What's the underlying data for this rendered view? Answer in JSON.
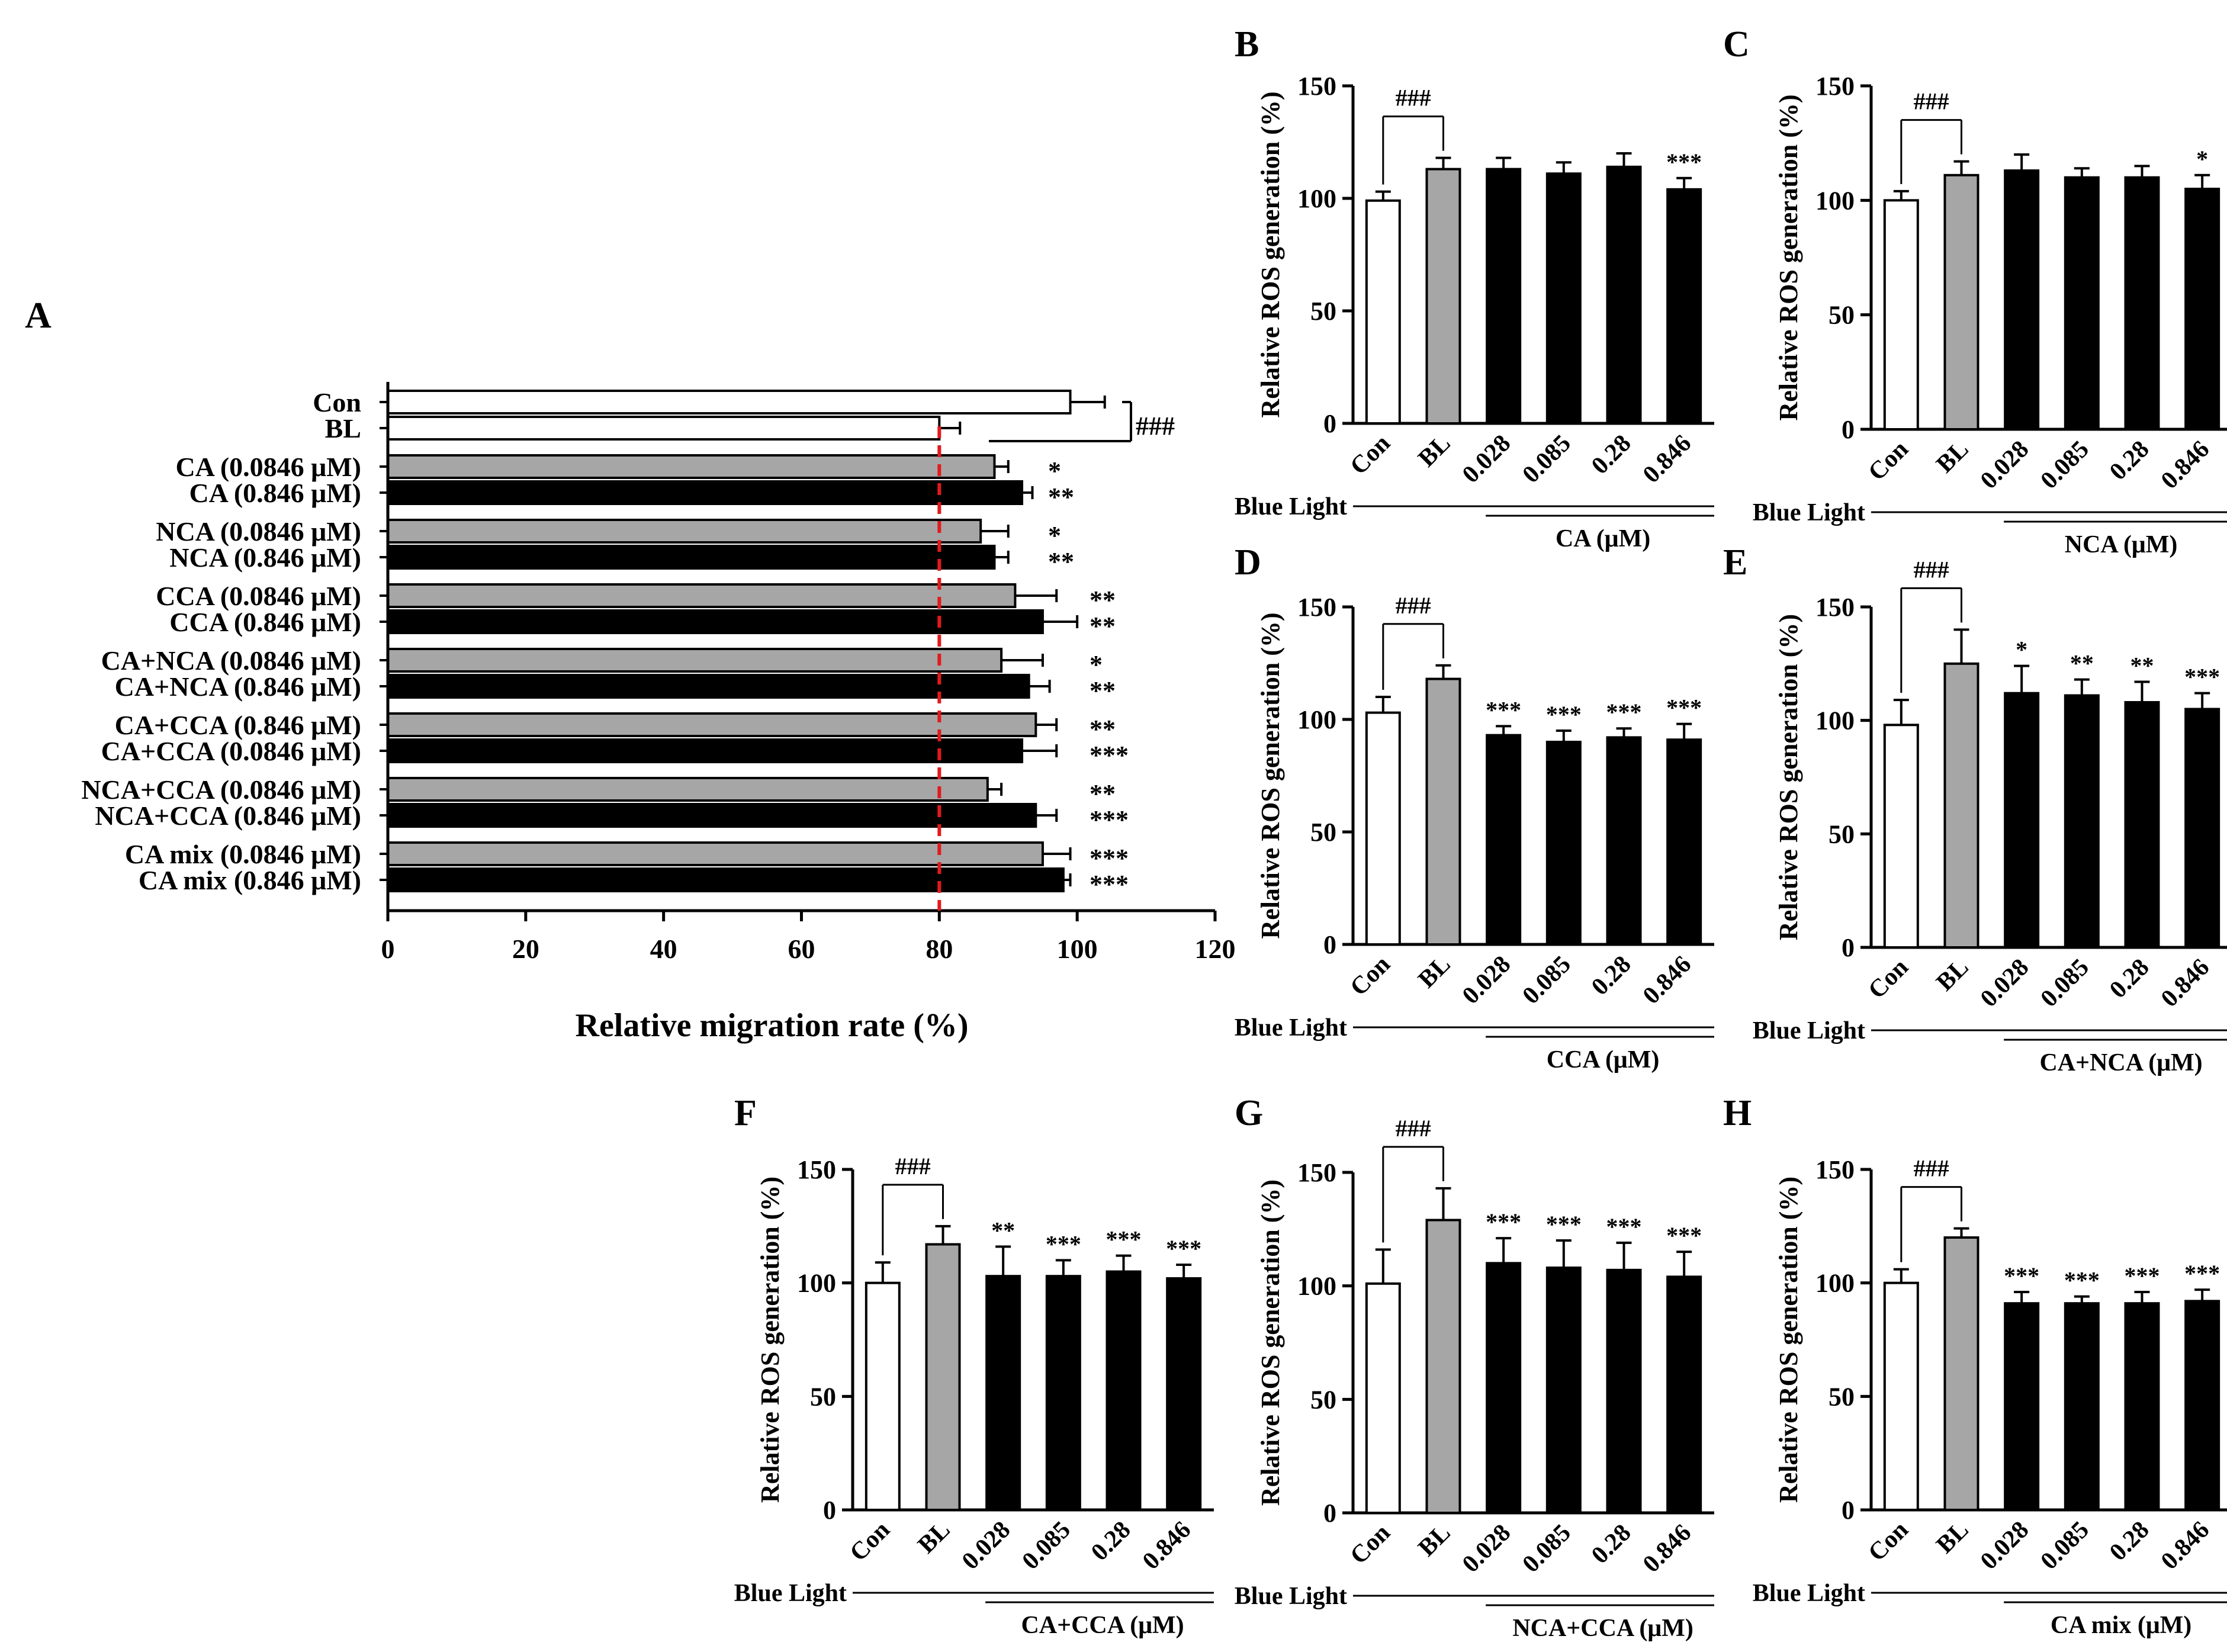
{
  "figure": {
    "colors": {
      "con": "#ffffff",
      "bl": "#a6a6a6",
      "dose_low": "#a6a6a6",
      "dose_high": "#000000",
      "reference_line": "#e31a1c",
      "ink": "#000000"
    }
  },
  "chart_data": [
    {
      "panel": "A",
      "type": "bar",
      "orientation": "horizontal",
      "xlabel": "Relative migration rate (%)",
      "xlim": [
        0,
        120
      ],
      "xticks": [
        "0",
        "20",
        "40",
        "60",
        "80",
        "100",
        "120"
      ],
      "reference_line": 80,
      "bracket_label": "###",
      "categories": [
        "Con",
        "BL",
        "CA (0.0846 μM)",
        "CA (0.846 μM)",
        "NCA (0.0846 μM)",
        "NCA (0.846 μM)",
        "CCA (0.0846 μM)",
        "CCA (0.846 μM)",
        "CA+NCA (0.0846 μM)",
        "CA+NCA (0.846 μM)",
        "CA+CCA (0.846 μM)",
        "CA+CCA (0.0846 μM)",
        "NCA+CCA (0.0846 μM)",
        "NCA+CCA (0.846 μM)",
        "CA mix (0.0846 μM)",
        "CA mix (0.846 μM)"
      ],
      "values": [
        99,
        80,
        88,
        92,
        86,
        88,
        91,
        95,
        89,
        93,
        94,
        92,
        87,
        94,
        95,
        98
      ],
      "errors": [
        5,
        3,
        2,
        1.5,
        4,
        2,
        6,
        5,
        6,
        3,
        3,
        5,
        2,
        3,
        4,
        1
      ],
      "fill": [
        "con",
        "con",
        "dose_low",
        "dose_high",
        "dose_low",
        "dose_high",
        "dose_low",
        "dose_high",
        "dose_low",
        "dose_high",
        "dose_low",
        "dose_high",
        "dose_low",
        "dose_high",
        "dose_low",
        "dose_high"
      ],
      "significance": [
        "",
        "",
        "*",
        "**",
        "*",
        "**",
        "**",
        "**",
        "*",
        "**",
        "**",
        "***",
        "**",
        "***",
        "***",
        "***"
      ]
    },
    {
      "panel": "B",
      "type": "bar",
      "ylabel": "Relative ROS generation (%)",
      "ylim": [
        0,
        150
      ],
      "yticks": [
        "0",
        "50",
        "100",
        "150"
      ],
      "categories": [
        "Con",
        "BL",
        "0.028",
        "0.085",
        "0.28",
        "0.846"
      ],
      "values": [
        99,
        113,
        113,
        111,
        114,
        104
      ],
      "errors": [
        4,
        5,
        5,
        5,
        6,
        5
      ],
      "significance": [
        "",
        "",
        "",
        "",
        "",
        "***"
      ],
      "bracket_label": "###",
      "group_label": "Blue Light",
      "treatment_label": "CA (μM)"
    },
    {
      "panel": "C",
      "type": "bar",
      "ylabel": "Relative ROS generation (%)",
      "ylim": [
        0,
        150
      ],
      "yticks": [
        "0",
        "50",
        "100",
        "150"
      ],
      "categories": [
        "Con",
        "BL",
        "0.028",
        "0.085",
        "0.28",
        "0.846"
      ],
      "values": [
        100,
        111,
        113,
        110,
        110,
        105
      ],
      "errors": [
        4,
        6,
        7,
        4,
        5,
        6
      ],
      "significance": [
        "",
        "",
        "",
        "",
        "",
        "*"
      ],
      "bracket_label": "###",
      "group_label": "Blue Light",
      "treatment_label": "NCA (μM)"
    },
    {
      "panel": "D",
      "type": "bar",
      "ylabel": "Relative ROS generation (%)",
      "ylim": [
        0,
        150
      ],
      "yticks": [
        "0",
        "50",
        "100",
        "150"
      ],
      "categories": [
        "Con",
        "BL",
        "0.028",
        "0.085",
        "0.28",
        "0.846"
      ],
      "values": [
        103,
        118,
        93,
        90,
        92,
        91
      ],
      "errors": [
        7,
        6,
        4,
        5,
        4,
        7
      ],
      "significance": [
        "",
        "",
        "***",
        "***",
        "***",
        "***"
      ],
      "bracket_label": "###",
      "group_label": "Blue Light",
      "treatment_label": "CCA (μM)"
    },
    {
      "panel": "E",
      "type": "bar",
      "ylabel": "Relative ROS generation (%)",
      "ylim": [
        0,
        150
      ],
      "yticks": [
        "0",
        "50",
        "100",
        "150"
      ],
      "categories": [
        "Con",
        "BL",
        "0.028",
        "0.085",
        "0.28",
        "0.846"
      ],
      "values": [
        98,
        125,
        112,
        111,
        108,
        105
      ],
      "errors": [
        11,
        15,
        12,
        7,
        9,
        7
      ],
      "significance": [
        "",
        "",
        "*",
        "**",
        "**",
        "***"
      ],
      "bracket_label": "###",
      "group_label": "Blue Light",
      "treatment_label": "CA+NCA (μM)"
    },
    {
      "panel": "F",
      "type": "bar",
      "ylabel": "Relative ROS generation (%)",
      "ylim": [
        0,
        150
      ],
      "yticks": [
        "0",
        "50",
        "100",
        "150"
      ],
      "categories": [
        "Con",
        "BL",
        "0.028",
        "0.085",
        "0.28",
        "0.846"
      ],
      "values": [
        100,
        117,
        103,
        103,
        105,
        102
      ],
      "errors": [
        9,
        8,
        13,
        7,
        7,
        6
      ],
      "significance": [
        "",
        "",
        "**",
        "***",
        "***",
        "***"
      ],
      "bracket_label": "###",
      "group_label": "Blue Light",
      "treatment_label": "CA+CCA (μM)"
    },
    {
      "panel": "G",
      "type": "bar",
      "ylabel": "Relative ROS generation (%)",
      "ylim": [
        0,
        150
      ],
      "yticks": [
        "0",
        "50",
        "100",
        "150"
      ],
      "categories": [
        "Con",
        "BL",
        "0.028",
        "0.085",
        "0.28",
        "0.846"
      ],
      "values": [
        101,
        129,
        110,
        108,
        107,
        104
      ],
      "errors": [
        15,
        14,
        11,
        12,
        12,
        11
      ],
      "significance": [
        "",
        "",
        "***",
        "***",
        "***",
        "***"
      ],
      "bracket_label": "###",
      "group_label": "Blue Light",
      "treatment_label": "NCA+CCA (μM)"
    },
    {
      "panel": "H",
      "type": "bar",
      "ylabel": "Relative ROS generation (%)",
      "ylim": [
        0,
        150
      ],
      "yticks": [
        "0",
        "50",
        "100",
        "150"
      ],
      "categories": [
        "Con",
        "BL",
        "0.028",
        "0.085",
        "0.28",
        "0.846"
      ],
      "values": [
        100,
        120,
        91,
        91,
        91,
        92
      ],
      "errors": [
        6,
        4,
        5,
        3,
        5,
        5
      ],
      "significance": [
        "",
        "",
        "***",
        "***",
        "***",
        "***"
      ],
      "bracket_label": "###",
      "group_label": "Blue Light",
      "treatment_label": "CA mix (μM)"
    }
  ]
}
